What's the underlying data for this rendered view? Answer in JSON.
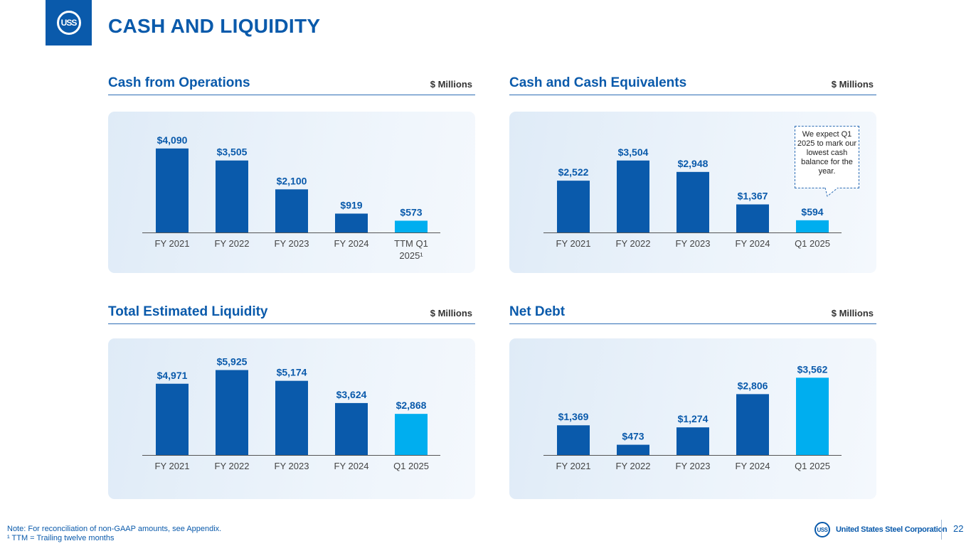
{
  "header": {
    "title": "CASH AND LIQUIDITY",
    "logo_text": "USS"
  },
  "colors": {
    "dark": "#0a5aab",
    "light": "#00aeef",
    "axis": "#555555"
  },
  "unit_label": "$ Millions",
  "callout": {
    "text": "We expect Q1 2025 to mark our lowest cash balance for the year."
  },
  "footer": {
    "note": "Note: For reconciliation of non-GAAP amounts, see Appendix.",
    "footnote": "¹ TTM = Trailing twelve months",
    "brand": "United States Steel Corporation",
    "brand_logo_text": "USS",
    "page_number": "22"
  },
  "chart_data": [
    {
      "type": "bar",
      "title": "Cash from Operations",
      "units": "$ Millions",
      "categories": [
        "FY 2021",
        "FY 2022",
        "FY 2023",
        "FY 2024",
        "TTM Q1 2025¹"
      ],
      "category_lines": [
        [
          "FY 2021"
        ],
        [
          "FY 2022"
        ],
        [
          "FY 2023"
        ],
        [
          "FY 2024"
        ],
        [
          "TTM Q1",
          "2025¹"
        ]
      ],
      "values": [
        4090,
        3505,
        2100,
        919,
        573
      ],
      "labels": [
        "$4,090",
        "$3,505",
        "$2,100",
        "$919",
        "$573"
      ],
      "highlight": [
        false,
        false,
        false,
        false,
        true
      ],
      "ylim": [
        0,
        4500
      ]
    },
    {
      "type": "bar",
      "title": "Cash and Cash Equivalents",
      "units": "$ Millions",
      "categories": [
        "FY 2021",
        "FY 2022",
        "FY 2023",
        "FY 2024",
        "Q1 2025"
      ],
      "category_lines": [
        [
          "FY 2021"
        ],
        [
          "FY 2022"
        ],
        [
          "FY 2023"
        ],
        [
          "FY 2024"
        ],
        [
          "Q1 2025"
        ]
      ],
      "values": [
        2522,
        3504,
        2948,
        1367,
        594
      ],
      "labels": [
        "$2,522",
        "$3,504",
        "$2,948",
        "$1,367",
        "$594"
      ],
      "highlight": [
        false,
        false,
        false,
        false,
        true
      ],
      "ylim": [
        0,
        4500
      ]
    },
    {
      "type": "bar",
      "title": "Total Estimated Liquidity",
      "units": "$ Millions",
      "categories": [
        "FY 2021",
        "FY 2022",
        "FY 2023",
        "FY 2024",
        "Q1 2025"
      ],
      "category_lines": [
        [
          "FY 2021"
        ],
        [
          "FY 2022"
        ],
        [
          "FY 2023"
        ],
        [
          "FY 2024"
        ],
        [
          "Q1 2025"
        ]
      ],
      "values": [
        4971,
        5925,
        5174,
        3624,
        2868
      ],
      "labels": [
        "$4,971",
        "$5,925",
        "$5,174",
        "$3,624",
        "$2,868"
      ],
      "highlight": [
        false,
        false,
        false,
        false,
        true
      ],
      "ylim": [
        0,
        6000
      ]
    },
    {
      "type": "bar",
      "title": "Net Debt",
      "units": "$ Millions",
      "categories": [
        "FY 2021",
        "FY 2022",
        "FY 2023",
        "FY 2024",
        "Q1 2025"
      ],
      "category_lines": [
        [
          "FY 2021"
        ],
        [
          "FY 2022"
        ],
        [
          "FY 2023"
        ],
        [
          "FY 2024"
        ],
        [
          "Q1 2025"
        ]
      ],
      "values": [
        1369,
        473,
        1274,
        2806,
        3562
      ],
      "labels": [
        "$1,369",
        "$473",
        "$1,274",
        "$2,806",
        "$3,562"
      ],
      "highlight": [
        false,
        false,
        false,
        false,
        true
      ],
      "ylim": [
        0,
        3900
      ]
    }
  ]
}
